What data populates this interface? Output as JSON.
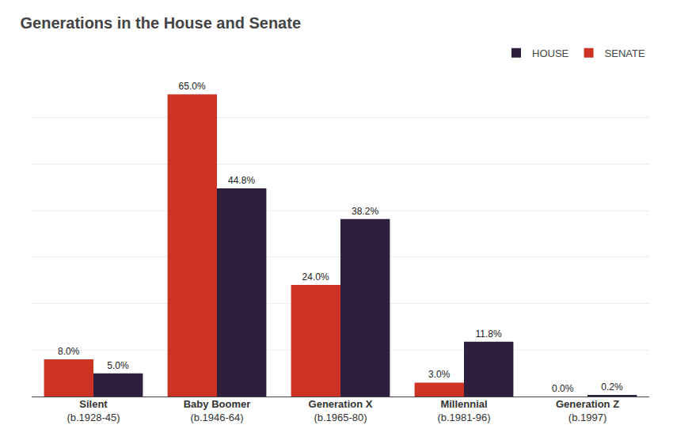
{
  "chart_data": {
    "type": "bar",
    "title": "Generations in the House and Senate",
    "categories": [
      "Silent\n(b.1928-45)",
      "Baby Boomer\n(b.1946-64)",
      "Generation X\n(b.1965-80)",
      "Millennial\n(b.1981-96)",
      "Generation Z\n(b.1997)"
    ],
    "series": [
      {
        "name": "SENATE",
        "color": "#cc3322",
        "values": [
          8.0,
          65.0,
          24.0,
          3.0,
          0.0
        ],
        "value_labels": [
          "8.0%",
          "65.0%",
          "24.0%",
          "3.0%",
          "0.0%"
        ]
      },
      {
        "name": "HOUSE",
        "color": "#2d1f3d",
        "values": [
          5.0,
          44.8,
          38.2,
          11.8,
          0.2
        ],
        "value_labels": [
          "5.0%",
          "44.8%",
          "38.2%",
          "11.8%",
          "0.2%"
        ]
      }
    ],
    "ylim": [
      0,
      70
    ],
    "yticks": [
      0,
      10,
      20,
      30,
      40,
      50,
      60,
      70
    ],
    "grid": true,
    "legend": "top",
    "data_labels": true,
    "tick_labels": "x"
  }
}
